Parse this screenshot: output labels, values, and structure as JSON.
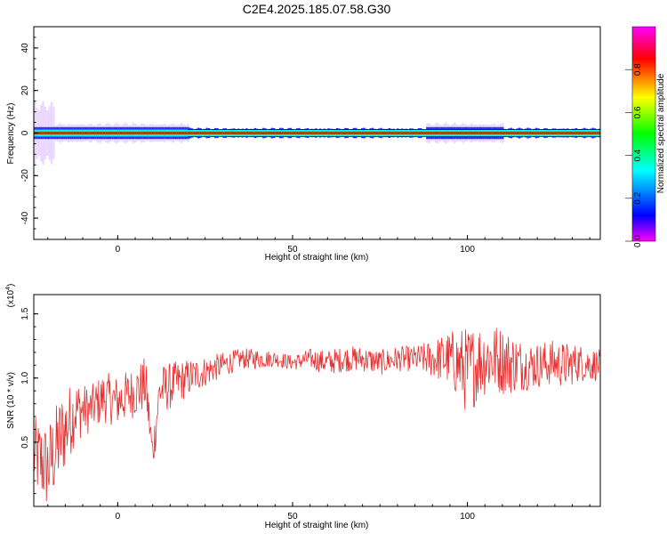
{
  "figure": {
    "title": "C2E4.2025.185.07.58.G30"
  },
  "chart_data": [
    {
      "type": "heatmap",
      "xlabel": "Height of straight line (km)",
      "ylabel": "Frequency (Hz)",
      "xlim": [
        -24,
        138
      ],
      "ylim": [
        -50,
        50
      ],
      "x_ticks": [
        0,
        50,
        100
      ],
      "y_ticks": [
        -40,
        -20,
        0,
        20,
        40
      ],
      "colorbar": {
        "label": "Normalized spectral amplitude",
        "range": [
          0.0,
          1.0
        ],
        "ticks": [
          "0.0",
          "0.2",
          "0.4",
          "0.6",
          "0.8"
        ],
        "colormap": [
          "#ff00ff",
          "#0000ff",
          "#00ffff",
          "#00ff00",
          "#ffff00",
          "#ff0000",
          "#ff00ff"
        ]
      },
      "features": {
        "dominant_frequency": 0,
        "dominant_amplitude": 0.9,
        "spread_regions": [
          {
            "x": [
              -24,
              -18
            ],
            "freq_halfwidth": 15,
            "amplitude": 0.15
          },
          {
            "x": [
              -18,
              20
            ],
            "freq_halfwidth": 5,
            "amplitude": 0.3
          },
          {
            "x": [
              88,
              110
            ],
            "freq_halfwidth": 5,
            "amplitude": 0.3
          }
        ]
      }
    },
    {
      "type": "line",
      "xlabel": "Height of straight line (km)",
      "ylabel": "SNR (10 * v/v)",
      "y_multiplier": "(x10^4)",
      "xlim": [
        -24,
        138
      ],
      "ylim": [
        0,
        1.65
      ],
      "x_ticks": [
        0,
        50,
        100
      ],
      "y_ticks": [
        "0.5",
        "1.0",
        "1.5"
      ],
      "series": [
        {
          "color": "#e83030",
          "x": [
            -24,
            -20,
            -16,
            -12,
            -8,
            -4,
            0,
            4,
            8,
            10,
            12,
            16,
            20,
            25,
            30,
            35,
            40,
            45,
            50,
            55,
            60,
            65,
            70,
            75,
            80,
            85,
            90,
            95,
            98,
            100,
            104,
            108,
            112,
            116,
            120,
            124,
            128,
            132,
            138
          ],
          "y": [
            0.4,
            0.3,
            0.55,
            0.75,
            0.75,
            0.85,
            0.82,
            0.88,
            0.95,
            0.4,
            0.9,
            0.95,
            1.0,
            1.05,
            1.1,
            1.15,
            1.15,
            1.15,
            1.12,
            1.15,
            1.12,
            1.15,
            1.15,
            1.12,
            1.15,
            1.15,
            1.15,
            1.15,
            1.1,
            1.05,
            1.15,
            1.15,
            1.12,
            1.1,
            1.1,
            1.12,
            1.1,
            1.12,
            1.1
          ],
          "noise": [
            0.3,
            0.35,
            0.35,
            0.25,
            0.18,
            0.2,
            0.2,
            0.2,
            0.22,
            0.15,
            0.2,
            0.18,
            0.15,
            0.12,
            0.1,
            0.08,
            0.08,
            0.06,
            0.06,
            0.08,
            0.1,
            0.1,
            0.1,
            0.1,
            0.1,
            0.1,
            0.15,
            0.22,
            0.3,
            0.35,
            0.3,
            0.28,
            0.25,
            0.2,
            0.18,
            0.18,
            0.18,
            0.15,
            0.12
          ]
        }
      ]
    }
  ]
}
